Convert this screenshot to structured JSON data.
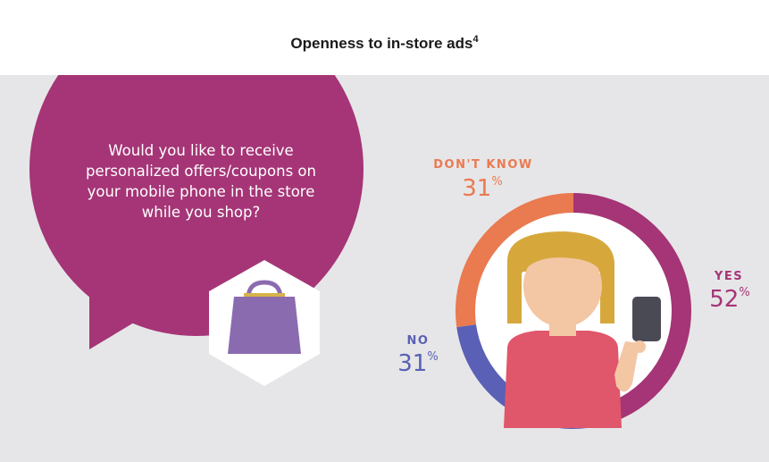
{
  "title": {
    "text": "Openness to in-store ads",
    "footnote": "4"
  },
  "question": "Would you like to receive personalized offers/coupons on your mobile phone in the store while you shop?",
  "colors": {
    "background": "#e6e6e8",
    "bubble": "#a53576",
    "yes": "#a53576",
    "dont_know": "#ea7a50",
    "no": "#5960b5",
    "bag": "#8b6bb0"
  },
  "icons": [
    "shopping-bag-icon",
    "woman-with-phone-icon"
  ],
  "chart_data": {
    "type": "pie",
    "title": "Openness to in-store ads",
    "labels": [
      "YES",
      "DON'T KNOW",
      "NO"
    ],
    "values": [
      52,
      31,
      31
    ],
    "unit": "%",
    "colors": [
      "#a53576",
      "#ea7a50",
      "#5960b5"
    ],
    "value_labels": [
      "52",
      "31",
      "31"
    ]
  }
}
